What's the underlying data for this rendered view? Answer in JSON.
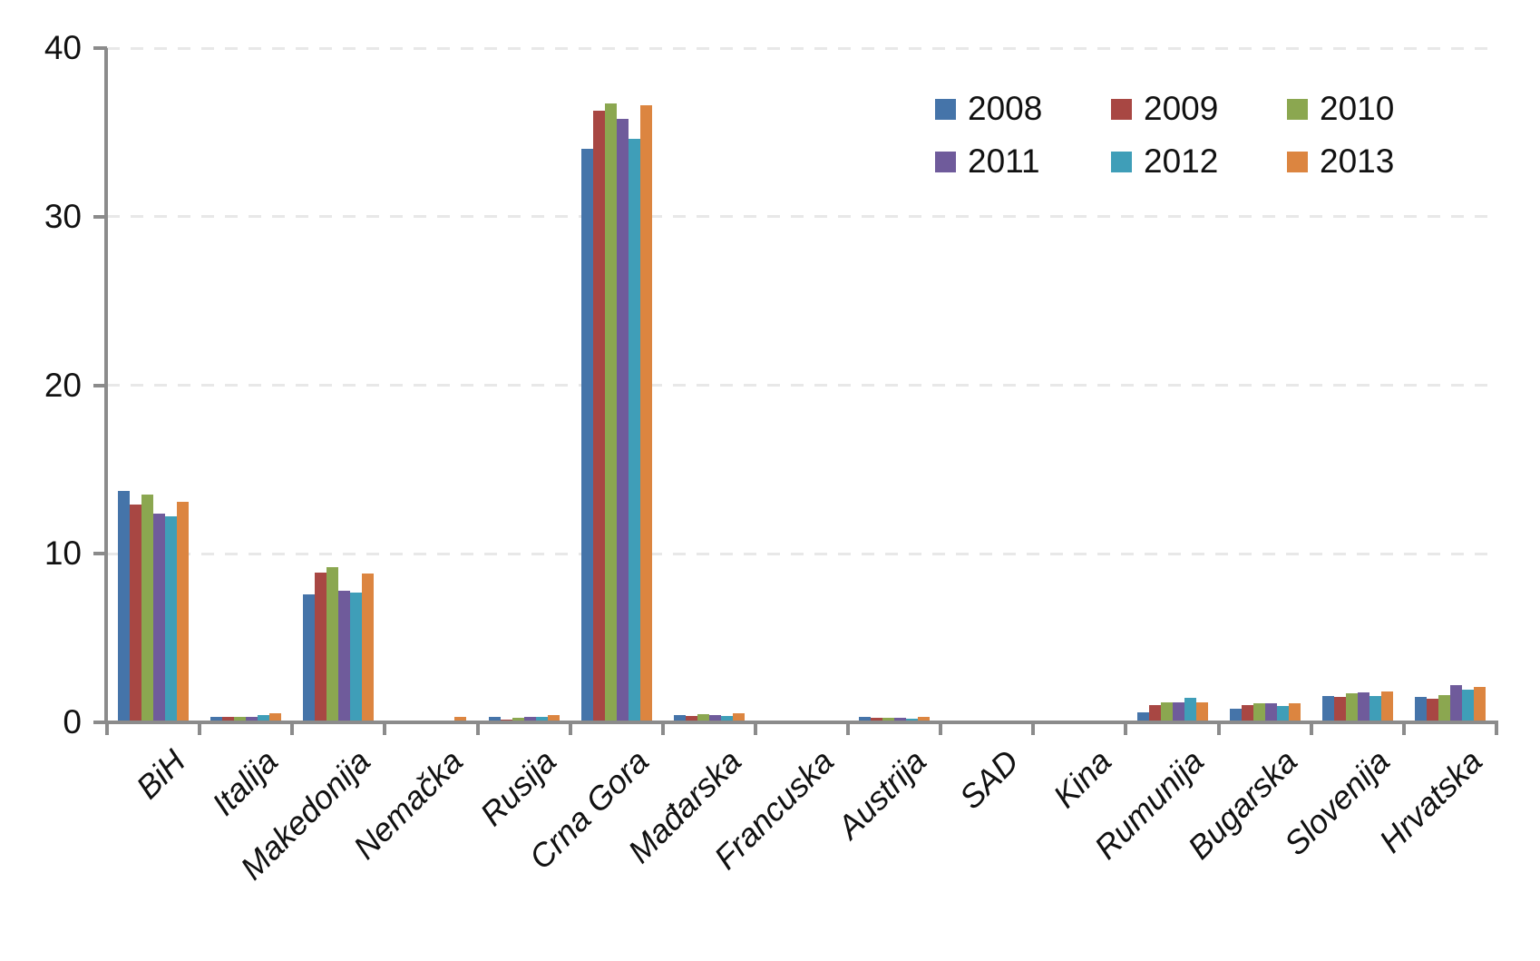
{
  "chart_data": {
    "type": "bar",
    "title": "",
    "xlabel": "",
    "ylabel": "",
    "ylim": [
      0,
      40
    ],
    "yticks": [
      0,
      10,
      20,
      30,
      40
    ],
    "grid": "dashed horizontal",
    "legend_position": "top-right",
    "categories": [
      "BiH",
      "Italija",
      "Makedonija",
      "Nemačka",
      "Rusija",
      "Crna Gora",
      "Mađarska",
      "Francuska",
      "Austrija",
      "SAD",
      "Kina",
      "Rumunija",
      "Bugarska",
      "Slovenija",
      "Hrvatska"
    ],
    "series": [
      {
        "name": "2008",
        "color": "#4574A9",
        "values": [
          13.6,
          0.2,
          7.5,
          0,
          0.2,
          33.9,
          0.3,
          0,
          0.2,
          0,
          0,
          0.5,
          0.7,
          1.45,
          1.4
        ]
      },
      {
        "name": "2009",
        "color": "#A84743",
        "values": [
          12.8,
          0.2,
          8.8,
          0,
          0.05,
          36.2,
          0.25,
          0,
          0.15,
          0,
          0,
          0.9,
          0.9,
          1.4,
          1.3
        ]
      },
      {
        "name": "2010",
        "color": "#8BA750",
        "values": [
          13.4,
          0.2,
          9.1,
          0,
          0.15,
          36.6,
          0.35,
          0,
          0.15,
          0,
          0,
          1.05,
          1.0,
          1.6,
          1.5
        ]
      },
      {
        "name": "2011",
        "color": "#6F5B9B",
        "values": [
          12.3,
          0.2,
          7.7,
          0,
          0.2,
          35.7,
          0.3,
          0,
          0.15,
          0,
          0,
          1.1,
          1.0,
          1.65,
          2.1
        ]
      },
      {
        "name": "2012",
        "color": "#3F9EB8",
        "values": [
          12.1,
          0.3,
          7.6,
          0,
          0.2,
          34.5,
          0.25,
          0,
          0.1,
          0,
          0,
          1.35,
          0.85,
          1.45,
          1.85
        ]
      },
      {
        "name": "2013",
        "color": "#DC8540",
        "values": [
          13.0,
          0.45,
          8.7,
          0.2,
          0.3,
          36.5,
          0.45,
          0,
          0.2,
          0,
          0,
          1.1,
          1.0,
          1.7,
          2.0
        ]
      }
    ],
    "axis_color": "#8b8b8b",
    "gridline_color": "#e8e8e8"
  }
}
